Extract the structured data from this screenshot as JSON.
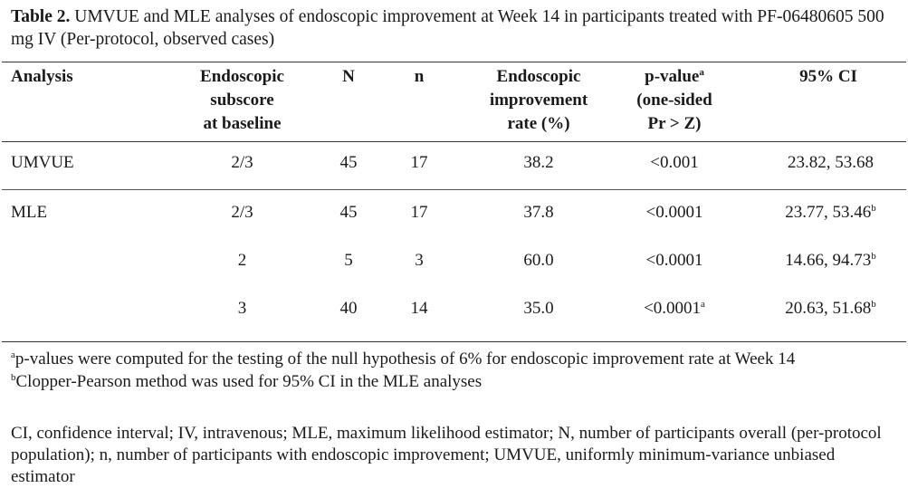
{
  "caption": {
    "label": "Table 2.",
    "text": " UMVUE and MLE analyses of endoscopic improvement at Week 14 in participants treated with PF-06480605 500 mg IV (Per-protocol, observed cases)"
  },
  "headers": {
    "analysis": "Analysis",
    "subscore": [
      "Endoscopic",
      "subscore",
      "at baseline"
    ],
    "N": "N",
    "n": "n",
    "rate": [
      "Endoscopic",
      "improvement",
      "rate (%)"
    ],
    "pvalue": [
      "p-value",
      "(one-sided",
      "Pr > Z)"
    ],
    "pvalue_sup": "a",
    "ci": "95% CI"
  },
  "rows": [
    {
      "analysis": "UMVUE",
      "subscore": "2/3",
      "N": "45",
      "n": "17",
      "rate": "38.2",
      "p": "<0.001",
      "p_sup": "",
      "ci": "23.82, 53.68",
      "ci_sup": ""
    },
    {
      "analysis": "MLE",
      "subscore": "2/3",
      "N": "45",
      "n": "17",
      "rate": "37.8",
      "p": "<0.0001",
      "p_sup": "",
      "ci": "23.77, 53.46",
      "ci_sup": "b"
    },
    {
      "analysis": "",
      "subscore": "2",
      "N": "5",
      "n": "3",
      "rate": "60.0",
      "p": "<0.0001",
      "p_sup": "",
      "ci": "14.66, 94.73",
      "ci_sup": "b"
    },
    {
      "analysis": "",
      "subscore": "3",
      "N": "40",
      "n": "14",
      "rate": "35.0",
      "p": "<0.0001",
      "p_sup": "a",
      "ci": "20.63, 51.68",
      "ci_sup": "b"
    }
  ],
  "footnotes": [
    {
      "mark": "a",
      "text": "p-values were computed for the testing of the null hypothesis of 6% for endoscopic improvement rate at Week 14"
    },
    {
      "mark": "b",
      "text": "Clopper-Pearson method was used for 95% CI in the MLE analyses"
    }
  ],
  "abbreviations": "CI, confidence interval; IV, intravenous; MLE, maximum likelihood estimator; N, number of participants overall (per-protocol population); n, number of participants with endoscopic improvement; UMVUE, uniformly minimum-variance unbiased estimator"
}
